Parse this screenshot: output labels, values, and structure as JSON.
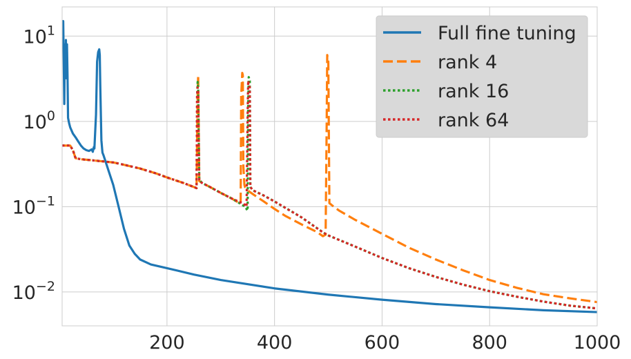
{
  "chart_data": {
    "type": "line",
    "xlim": [
      5,
      1000
    ],
    "ylim": [
      0.004,
      22
    ],
    "yscale": "log",
    "grid": true,
    "legend_position": "top-right",
    "x_ticks": [
      {
        "value": 200,
        "label": "200"
      },
      {
        "value": 400,
        "label": "400"
      },
      {
        "value": 600,
        "label": "600"
      },
      {
        "value": 800,
        "label": "800"
      },
      {
        "value": 1000,
        "label": "1000"
      }
    ],
    "y_ticks": [
      {
        "value": 10,
        "base": "10",
        "exp": "1"
      },
      {
        "value": 1,
        "base": "10",
        "exp": "0"
      },
      {
        "value": 0.1,
        "base": "10",
        "exp": "−1"
      },
      {
        "value": 0.01,
        "base": "10",
        "exp": "−2"
      }
    ],
    "series": [
      {
        "name": "Full fine tuning",
        "color": "#1f77b4",
        "dash": "solid",
        "x": [
          5,
          6,
          7,
          8,
          9,
          10,
          11,
          12,
          13,
          14,
          15,
          16,
          18,
          20,
          25,
          30,
          35,
          40,
          45,
          50,
          55,
          60,
          62,
          64,
          65,
          68,
          70,
          72,
          74,
          75,
          76,
          78,
          80,
          82,
          85,
          90,
          100,
          110,
          120,
          130,
          140,
          150,
          170,
          200,
          250,
          300,
          400,
          500,
          600,
          700,
          800,
          900,
          1000
        ],
        "y": [
          7,
          14,
          15,
          5,
          1.6,
          8,
          3.5,
          9,
          3.2,
          8,
          3.5,
          1.1,
          0.95,
          0.85,
          0.72,
          0.65,
          0.58,
          0.52,
          0.48,
          0.46,
          0.45,
          0.47,
          0.44,
          0.5,
          0.48,
          1.2,
          5,
          6.5,
          7,
          6,
          2.5,
          0.6,
          0.43,
          0.4,
          0.35,
          0.28,
          0.18,
          0.1,
          0.055,
          0.035,
          0.028,
          0.024,
          0.021,
          0.019,
          0.016,
          0.0138,
          0.011,
          0.0093,
          0.0081,
          0.0072,
          0.0066,
          0.0061,
          0.0058
        ]
      },
      {
        "name": "rank 4",
        "color": "#ff7f0e",
        "dash": "dashed",
        "x": [
          5,
          10,
          20,
          25,
          30,
          40,
          60,
          80,
          100,
          120,
          150,
          180,
          200,
          230,
          250,
          255,
          257,
          258,
          260,
          265,
          280,
          300,
          320,
          335,
          337,
          338,
          340,
          341,
          342,
          344,
          345,
          350,
          360,
          380,
          400,
          420,
          450,
          480,
          490,
          495,
          497,
          498,
          500,
          502,
          510,
          520,
          550,
          600,
          650,
          700,
          750,
          800,
          850,
          900,
          950,
          1000
        ],
        "y": [
          0.52,
          0.52,
          0.52,
          0.46,
          0.37,
          0.36,
          0.35,
          0.34,
          0.33,
          0.31,
          0.28,
          0.245,
          0.22,
          0.19,
          0.17,
          0.165,
          2.0,
          3.5,
          0.2,
          0.19,
          0.17,
          0.145,
          0.125,
          0.11,
          0.11,
          2.0,
          3.7,
          3.5,
          0.3,
          0.18,
          0.17,
          0.155,
          0.14,
          0.115,
          0.094,
          0.078,
          0.062,
          0.05,
          0.045,
          0.047,
          1.0,
          6.0,
          5.0,
          0.11,
          0.1,
          0.09,
          0.07,
          0.048,
          0.033,
          0.024,
          0.018,
          0.0138,
          0.0112,
          0.0094,
          0.0084,
          0.0076
        ]
      },
      {
        "name": "rank 16",
        "color": "#2ca02c",
        "dash": "dotted",
        "x": [
          5,
          10,
          20,
          25,
          30,
          40,
          60,
          80,
          100,
          120,
          150,
          180,
          200,
          230,
          250,
          255,
          256,
          257,
          258,
          260,
          265,
          280,
          300,
          320,
          340,
          345,
          350,
          351,
          352,
          354,
          355,
          360,
          380,
          400,
          450,
          490,
          500,
          550,
          600,
          650,
          700,
          750,
          800,
          850,
          900,
          950,
          1000
        ],
        "y": [
          0.52,
          0.52,
          0.52,
          0.46,
          0.37,
          0.36,
          0.35,
          0.34,
          0.33,
          0.31,
          0.28,
          0.245,
          0.22,
          0.19,
          0.17,
          0.165,
          2.0,
          2.9,
          2.5,
          0.21,
          0.19,
          0.17,
          0.145,
          0.125,
          0.105,
          0.1,
          0.09,
          1.5,
          3.3,
          3.0,
          0.17,
          0.155,
          0.135,
          0.115,
          0.075,
          0.05,
          0.046,
          0.034,
          0.025,
          0.019,
          0.015,
          0.0122,
          0.0102,
          0.0088,
          0.0077,
          0.0069,
          0.0064
        ]
      },
      {
        "name": "rank 64",
        "color": "#d62728",
        "dash": "dotted",
        "x": [
          5,
          10,
          20,
          25,
          30,
          40,
          60,
          80,
          100,
          120,
          150,
          180,
          200,
          230,
          250,
          255,
          256,
          257,
          258,
          260,
          265,
          280,
          300,
          320,
          340,
          345,
          348,
          350,
          351,
          352,
          354,
          355,
          360,
          380,
          400,
          450,
          490,
          500,
          550,
          600,
          650,
          700,
          750,
          800,
          850,
          900,
          950,
          1000
        ],
        "y": [
          0.52,
          0.52,
          0.52,
          0.46,
          0.37,
          0.36,
          0.35,
          0.34,
          0.33,
          0.31,
          0.28,
          0.245,
          0.22,
          0.19,
          0.17,
          0.165,
          2.0,
          2.5,
          2.2,
          0.2,
          0.19,
          0.17,
          0.145,
          0.125,
          0.11,
          0.105,
          0.1,
          1.2,
          3.0,
          2.8,
          2.5,
          0.17,
          0.155,
          0.135,
          0.115,
          0.075,
          0.05,
          0.046,
          0.034,
          0.025,
          0.019,
          0.015,
          0.0122,
          0.0102,
          0.0088,
          0.0077,
          0.0069,
          0.0064
        ]
      }
    ]
  }
}
